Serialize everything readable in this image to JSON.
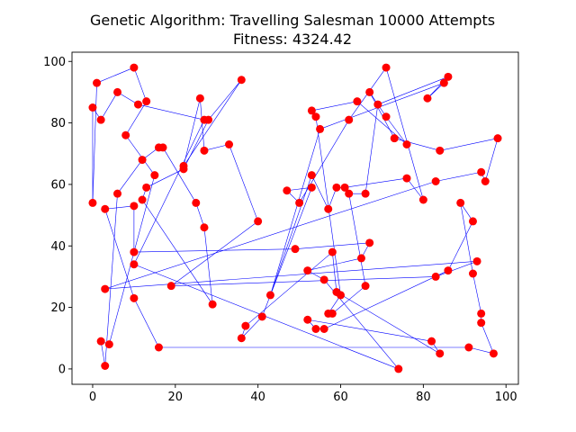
{
  "chart_data": {
    "type": "line",
    "title": "Genetic Algorithm: Travelling Salesman 10000 Attempts",
    "subtitle": "Fitness: 4324.42",
    "xlabel": "",
    "ylabel": "",
    "xlim": [
      -5,
      103
    ],
    "ylim": [
      -5,
      103
    ],
    "xticks": [
      0,
      20,
      40,
      60,
      80,
      100
    ],
    "yticks": [
      0,
      20,
      40,
      60,
      80,
      100
    ],
    "grid": false,
    "colors": {
      "route": "#0000ff",
      "city": "#ff0000",
      "axis": "#000000"
    },
    "route": [
      [
        1,
        93
      ],
      [
        10,
        98
      ],
      [
        13,
        87
      ],
      [
        8,
        76
      ],
      [
        15,
        63
      ],
      [
        4,
        8
      ],
      [
        2,
        9
      ],
      [
        3,
        1
      ],
      [
        6,
        57
      ],
      [
        12,
        68
      ],
      [
        16,
        72
      ],
      [
        17,
        72
      ],
      [
        25,
        54
      ],
      [
        27,
        46
      ],
      [
        29,
        21
      ],
      [
        12,
        55
      ],
      [
        13,
        59
      ],
      [
        22,
        65
      ],
      [
        28,
        81
      ],
      [
        36,
        94
      ],
      [
        22,
        66
      ],
      [
        26,
        88
      ],
      [
        27,
        71
      ],
      [
        33,
        73
      ],
      [
        40,
        48
      ],
      [
        19,
        27
      ],
      [
        83,
        30
      ],
      [
        93,
        35
      ],
      [
        3,
        26
      ],
      [
        83,
        61
      ],
      [
        94,
        64
      ],
      [
        95,
        61
      ],
      [
        98,
        75
      ],
      [
        84,
        71
      ],
      [
        73,
        75
      ],
      [
        67,
        90
      ],
      [
        71,
        82
      ],
      [
        76,
        73
      ],
      [
        64,
        87
      ],
      [
        53,
        84
      ],
      [
        54,
        82
      ],
      [
        60,
        24
      ],
      [
        57,
        18
      ],
      [
        58,
        18
      ],
      [
        66,
        27
      ],
      [
        62,
        57
      ],
      [
        66,
        57
      ],
      [
        69,
        86
      ],
      [
        86,
        95
      ],
      [
        81,
        88
      ],
      [
        85,
        93
      ],
      [
        55,
        78
      ],
      [
        43,
        24
      ],
      [
        53,
        63
      ],
      [
        57,
        52
      ],
      [
        59,
        59
      ],
      [
        61,
        59
      ],
      [
        76,
        62
      ],
      [
        80,
        55
      ],
      [
        71,
        98
      ],
      [
        62,
        81
      ],
      [
        50,
        54
      ],
      [
        47,
        58
      ],
      [
        53,
        59
      ],
      [
        41,
        17
      ],
      [
        36,
        10
      ],
      [
        37,
        14
      ],
      [
        58,
        38
      ],
      [
        59,
        25
      ],
      [
        84,
        5
      ],
      [
        82,
        9
      ],
      [
        52,
        16
      ],
      [
        54,
        13
      ],
      [
        56,
        13
      ],
      [
        86,
        32
      ],
      [
        92,
        48
      ],
      [
        89,
        54
      ],
      [
        92,
        31
      ],
      [
        94,
        18
      ],
      [
        94,
        15
      ],
      [
        97,
        5
      ],
      [
        91,
        7
      ],
      [
        16,
        7
      ],
      [
        10,
        23
      ],
      [
        3,
        52
      ],
      [
        10,
        53
      ],
      [
        10,
        38
      ],
      [
        49,
        39
      ],
      [
        67,
        41
      ],
      [
        65,
        36
      ],
      [
        52,
        32
      ],
      [
        56,
        29
      ],
      [
        74,
        0
      ],
      [
        10,
        34
      ],
      [
        27,
        81
      ],
      [
        11,
        86
      ],
      [
        6,
        90
      ],
      [
        2,
        81
      ],
      [
        0,
        85
      ],
      [
        0,
        54
      ],
      [
        1,
        93
      ]
    ]
  }
}
